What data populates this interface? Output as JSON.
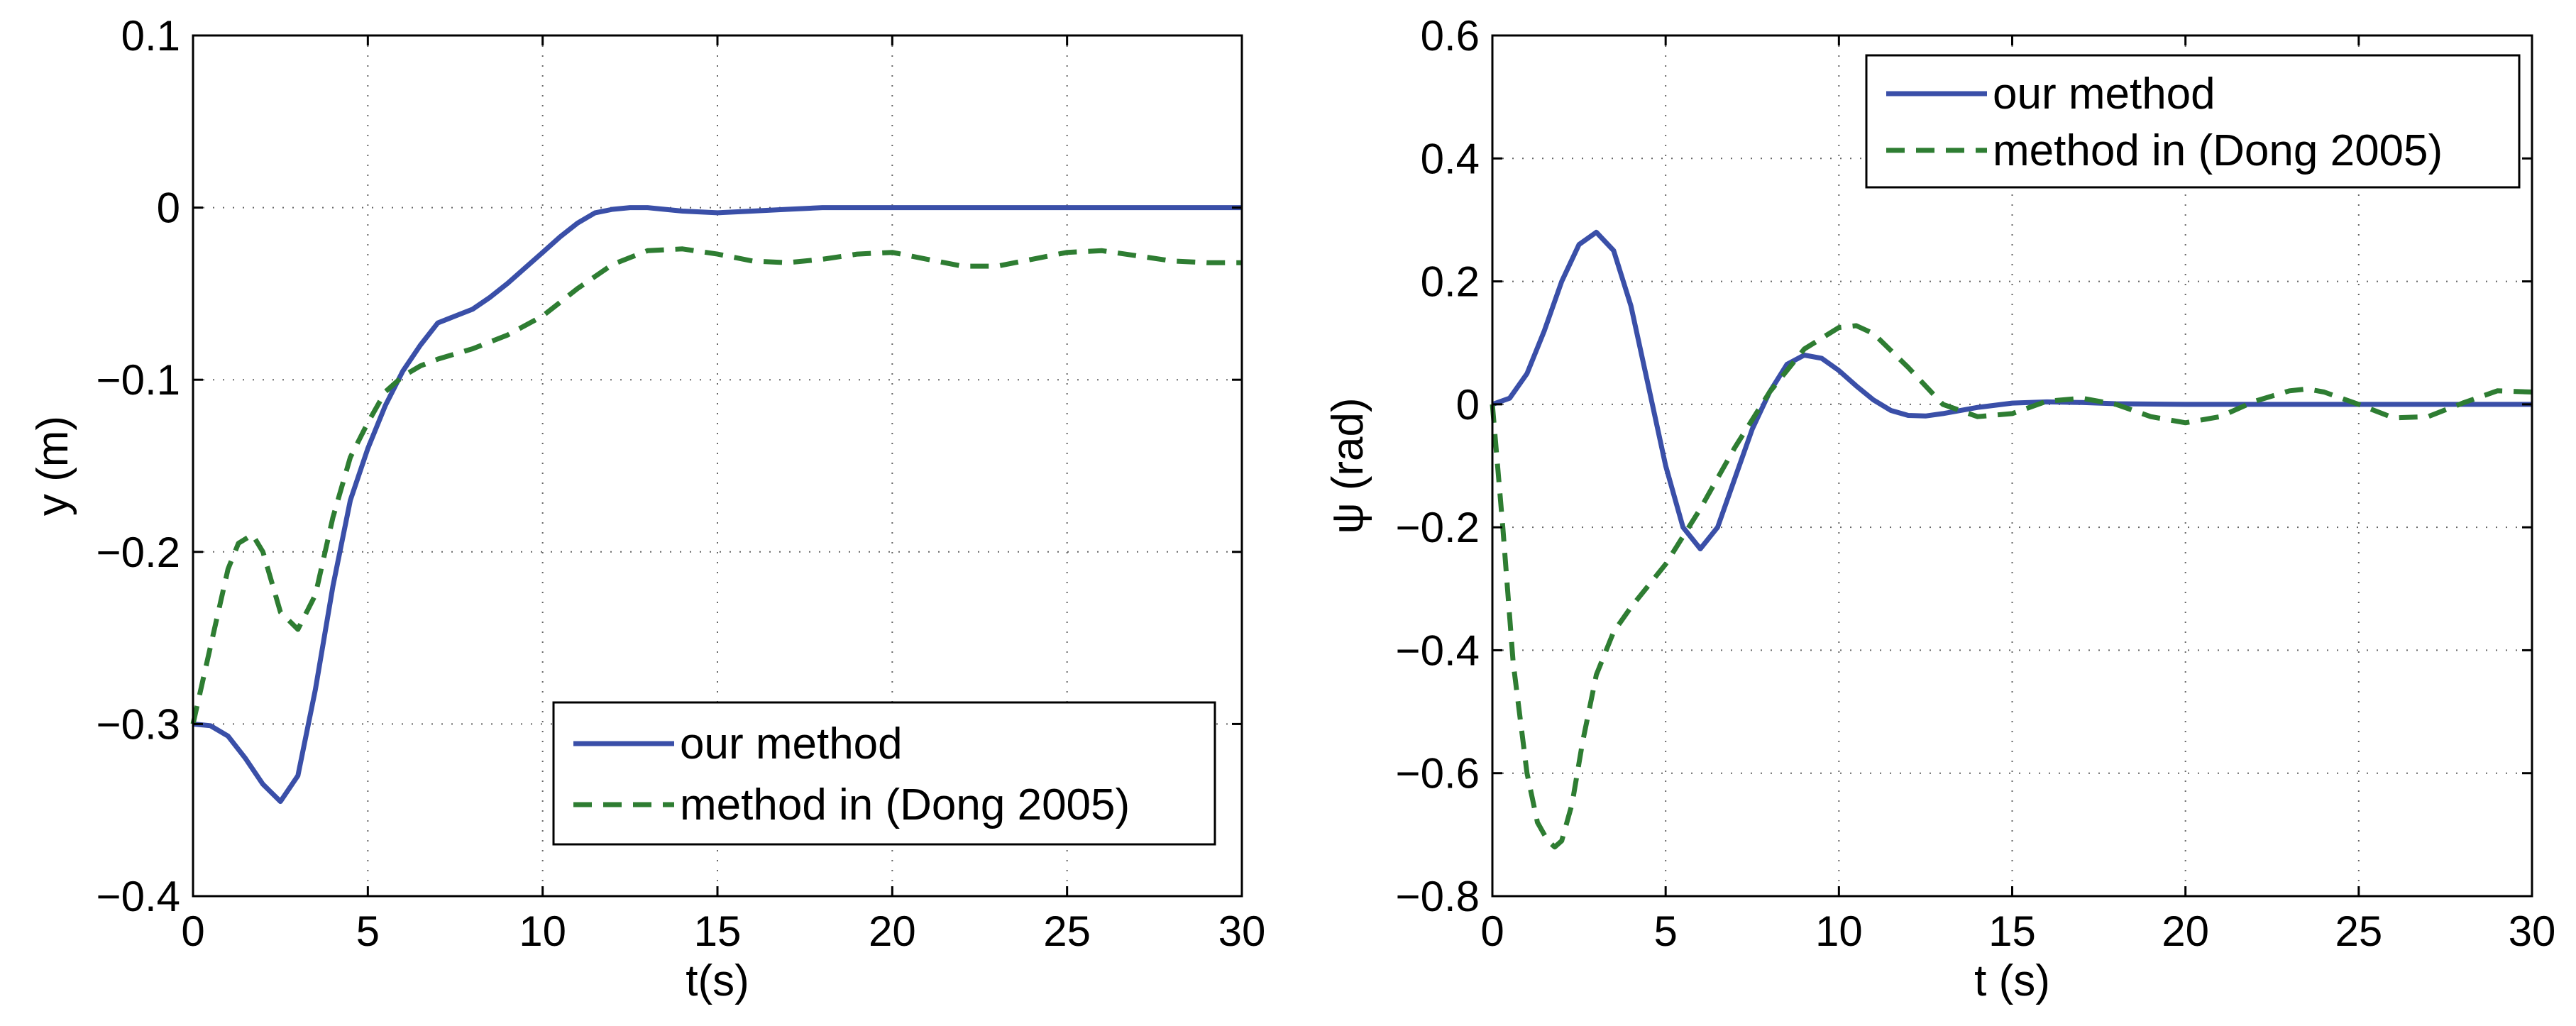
{
  "chart_data": [
    {
      "type": "line",
      "xlabel": "t(s)",
      "ylabel": "y (m)",
      "xlim": [
        0,
        30
      ],
      "ylim": [
        -0.4,
        0.1
      ],
      "xticks": [
        0,
        5,
        10,
        15,
        20,
        25,
        30
      ],
      "xtick_labels": [
        "0",
        "5",
        "10",
        "15",
        "20",
        "25",
        "30"
      ],
      "yticks": [
        -0.4,
        -0.3,
        -0.2,
        -0.1,
        0,
        0.1
      ],
      "ytick_labels": [
        "−0.4",
        "−0.3",
        "−0.2",
        "−0.1",
        "0",
        "0.1"
      ],
      "grid": true,
      "legend_position": "bottom-right",
      "series": [
        {
          "name": "our method",
          "color": "#3a4fa8",
          "style": "solid",
          "x": [
            0,
            0.5,
            1,
            1.5,
            2,
            2.5,
            3,
            3.5,
            4,
            4.5,
            5,
            5.5,
            6,
            6.5,
            7,
            7.5,
            8,
            8.5,
            9,
            9.5,
            10,
            10.5,
            11,
            11.5,
            12,
            12.5,
            13,
            14,
            15,
            16,
            17,
            18,
            20,
            22,
            24,
            26,
            28,
            30
          ],
          "y": [
            -0.3,
            -0.301,
            -0.307,
            -0.32,
            -0.335,
            -0.345,
            -0.33,
            -0.28,
            -0.22,
            -0.17,
            -0.14,
            -0.115,
            -0.095,
            -0.08,
            -0.067,
            -0.063,
            -0.059,
            -0.052,
            -0.044,
            -0.035,
            -0.026,
            -0.017,
            -0.009,
            -0.003,
            -0.001,
            0.0,
            0.0,
            -0.002,
            -0.003,
            -0.002,
            -0.001,
            0.0,
            0.0,
            0.0,
            0.0,
            0.0,
            0.0,
            0.0
          ]
        },
        {
          "name": "method in (Dong 2005)",
          "color": "#2e7d32",
          "style": "dashed",
          "x": [
            0,
            0.5,
            1,
            1.3,
            1.7,
            2,
            2.5,
            3,
            3.5,
            4,
            4.5,
            5,
            5.5,
            6,
            6.5,
            7,
            8,
            9,
            10,
            11,
            12,
            13,
            14,
            15,
            16,
            17,
            18,
            19,
            20,
            21,
            22,
            23,
            24,
            25,
            26,
            27,
            28,
            29,
            30
          ],
          "y": [
            -0.3,
            -0.255,
            -0.21,
            -0.195,
            -0.19,
            -0.2,
            -0.235,
            -0.245,
            -0.225,
            -0.18,
            -0.145,
            -0.125,
            -0.107,
            -0.098,
            -0.092,
            -0.088,
            -0.082,
            -0.074,
            -0.063,
            -0.047,
            -0.033,
            -0.025,
            -0.024,
            -0.027,
            -0.031,
            -0.032,
            -0.03,
            -0.027,
            -0.026,
            -0.03,
            -0.034,
            -0.034,
            -0.03,
            -0.026,
            -0.025,
            -0.028,
            -0.031,
            -0.032,
            -0.032
          ]
        }
      ]
    },
    {
      "type": "line",
      "xlabel": "t (s)",
      "ylabel": "ψ (rad)",
      "xlim": [
        0,
        30
      ],
      "ylim": [
        -0.8,
        0.6
      ],
      "xticks": [
        0,
        5,
        10,
        15,
        20,
        25,
        30
      ],
      "xtick_labels": [
        "0",
        "5",
        "10",
        "15",
        "20",
        "25",
        "30"
      ],
      "yticks": [
        -0.8,
        -0.6,
        -0.4,
        -0.2,
        0,
        0.2,
        0.4,
        0.6
      ],
      "ytick_labels": [
        "−0.8",
        "−0.6",
        "−0.4",
        "−0.2",
        "0",
        "0.2",
        "0.4",
        "0.6"
      ],
      "grid": true,
      "legend_position": "top-right",
      "series": [
        {
          "name": "our method",
          "color": "#3a4fa8",
          "style": "solid",
          "x": [
            0,
            0.5,
            1,
            1.5,
            2,
            2.5,
            3,
            3.5,
            4,
            4.5,
            5,
            5.5,
            6,
            6.5,
            7,
            7.5,
            8,
            8.5,
            9,
            9.5,
            10,
            10.5,
            11,
            11.5,
            12,
            12.5,
            13,
            14,
            15,
            16,
            17,
            18,
            20,
            22,
            24,
            26,
            28,
            30
          ],
          "y": [
            0.0,
            0.01,
            0.05,
            0.12,
            0.2,
            0.26,
            0.28,
            0.25,
            0.16,
            0.03,
            -0.1,
            -0.2,
            -0.235,
            -0.2,
            -0.12,
            -0.04,
            0.02,
            0.065,
            0.08,
            0.075,
            0.055,
            0.03,
            0.007,
            -0.01,
            -0.018,
            -0.019,
            -0.015,
            -0.005,
            0.002,
            0.004,
            0.003,
            0.001,
            0.0,
            0.0,
            0.0,
            0.0,
            0.0,
            0.0
          ]
        },
        {
          "name": "method in (Dong 2005)",
          "color": "#2e7d32",
          "style": "dashed",
          "x": [
            0,
            0.3,
            0.6,
            1,
            1.3,
            1.6,
            1.8,
            2,
            2.3,
            2.6,
            3,
            3.5,
            4,
            5,
            6,
            7,
            8,
            9,
            10,
            10.5,
            11,
            12,
            13,
            14,
            15,
            16,
            17,
            18,
            19,
            20,
            21,
            22,
            23,
            23.5,
            24,
            25,
            26,
            27,
            28,
            29,
            30
          ],
          "y": [
            0.0,
            -0.2,
            -0.42,
            -0.6,
            -0.68,
            -0.71,
            -0.72,
            -0.71,
            -0.65,
            -0.55,
            -0.44,
            -0.37,
            -0.33,
            -0.26,
            -0.17,
            -0.07,
            0.02,
            0.09,
            0.125,
            0.128,
            0.115,
            0.06,
            0.0,
            -0.02,
            -0.015,
            0.005,
            0.01,
            0.0,
            -0.02,
            -0.03,
            -0.02,
            0.005,
            0.022,
            0.025,
            0.02,
            0.0,
            -0.022,
            -0.02,
            0.002,
            0.022,
            0.02
          ]
        }
      ]
    }
  ]
}
